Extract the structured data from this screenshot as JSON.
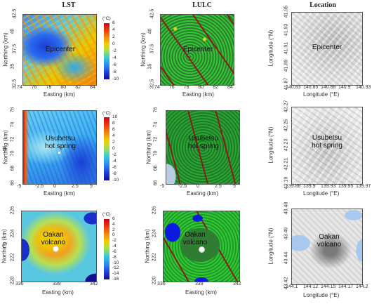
{
  "columns": {
    "lst": "LST",
    "lulc": "LULC",
    "location": "Location"
  },
  "row_labels": {
    "b": "B",
    "c": "C"
  },
  "axis_labels": {
    "easting": "Easting (km)",
    "northing": "Northing (km)",
    "longitude_x": "Longitude (°E)",
    "longitude_y": "Longitude (°N)"
  },
  "unit": "(°C)",
  "rows": [
    {
      "label": "Epicenter",
      "lst": {
        "xticks": [
          "74",
          "76",
          "78",
          "80",
          "82",
          "84"
        ],
        "yticks": [
          "32.5",
          "35",
          "37.5",
          "40",
          "42.5"
        ],
        "cbar": [
          "6",
          "4",
          "2",
          "0",
          "-2",
          "-4",
          "-6",
          "-8",
          "-10"
        ]
      },
      "lulc": {
        "xticks": [
          "74",
          "76",
          "78",
          "80",
          "82",
          "84"
        ],
        "yticks": [
          "32.5",
          "35",
          "37.5",
          "40",
          "42.5"
        ]
      },
      "loc": {
        "xticks": [
          "140.83",
          "140.85",
          "140.88",
          "140.9",
          "140.93"
        ],
        "yticks": [
          "41.87",
          "41.89",
          "41.91",
          "41.93",
          "41.95"
        ]
      }
    },
    {
      "label": "Usubetsu hot spring",
      "label_l1": "Usubetsu",
      "label_l2": "hot spring",
      "lst": {
        "xticks": [
          "-5",
          "-2.5",
          "0",
          "2.5",
          "5"
        ],
        "yticks": [
          "66",
          "68",
          "70",
          "72",
          "74",
          "76"
        ],
        "cbar": [
          "10",
          "8",
          "6",
          "4",
          "2",
          "0",
          "-2",
          "-4",
          "-6",
          "-8",
          "-10"
        ]
      },
      "lulc": {
        "xticks": [
          "-5",
          "-2.5",
          "0",
          "2.5",
          "5"
        ],
        "yticks": [
          "66",
          "68",
          "70",
          "72",
          "74",
          "76"
        ]
      },
      "loc": {
        "xticks": [
          "139.88",
          "139.9",
          "139.93",
          "139.95",
          "139.97"
        ],
        "yticks": [
          "42.19",
          "42.21",
          "42.23",
          "42.25",
          "42.27"
        ]
      }
    },
    {
      "label": "Oakan volcano",
      "label_l1": "Oakan",
      "label_l2": "volcano",
      "lst": {
        "xticks": [
          "336",
          "339",
          "342"
        ],
        "yticks": [
          "220",
          "222",
          "224",
          "226"
        ],
        "cbar": [
          "6",
          "4",
          "2",
          "0",
          "-2",
          "-4",
          "-6",
          "-8",
          "-10",
          "-12",
          "-14",
          "-16"
        ]
      },
      "lulc": {
        "xticks": [
          "336",
          "339",
          "342"
        ],
        "yticks": [
          "220",
          "222",
          "224",
          "226"
        ]
      },
      "loc": {
        "xticks": [
          "144.1",
          "144.12",
          "144.15",
          "144.17",
          "144.2"
        ],
        "yticks": [
          "43.42",
          "43.44",
          "43.46",
          "43.48"
        ]
      }
    }
  ]
}
